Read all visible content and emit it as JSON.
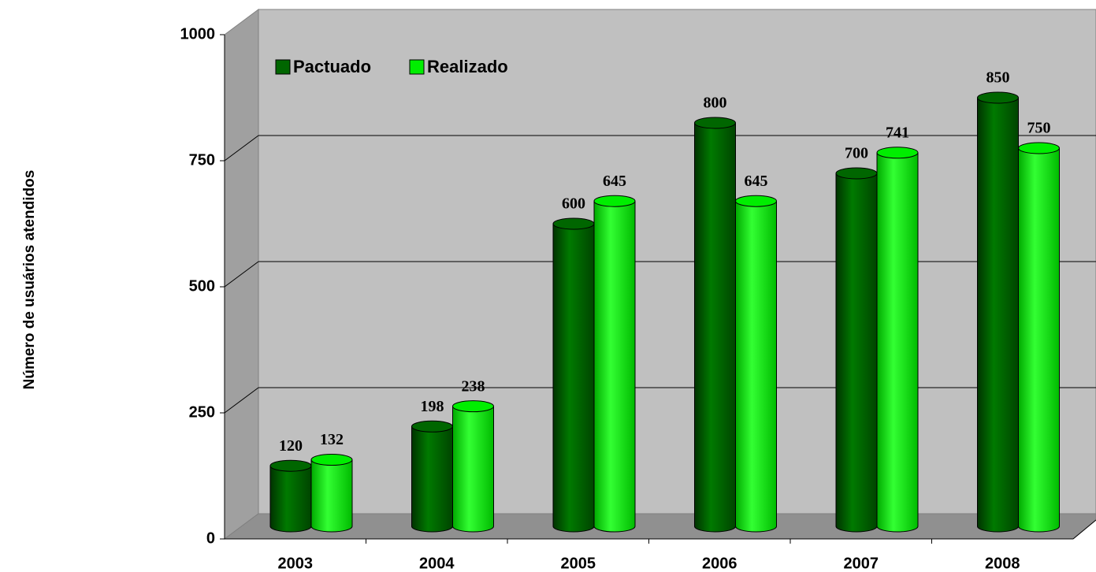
{
  "chart_data": {
    "type": "bar",
    "y_label": "Número de usuários atendidos",
    "categories": [
      "2003",
      "2004",
      "2005",
      "2006",
      "2007",
      "2008"
    ],
    "series": [
      {
        "name": "Pactuado",
        "color": "#006600",
        "values": [
          120,
          198,
          600,
          800,
          700,
          850
        ]
      },
      {
        "name": "Realizado",
        "color": "#00ee00",
        "values": [
          132,
          238,
          645,
          645,
          741,
          750
        ]
      }
    ],
    "ylim": [
      0,
      1000
    ],
    "yticks": [
      0,
      250,
      500,
      750,
      1000
    ],
    "grid": true,
    "legend": "top-left"
  }
}
